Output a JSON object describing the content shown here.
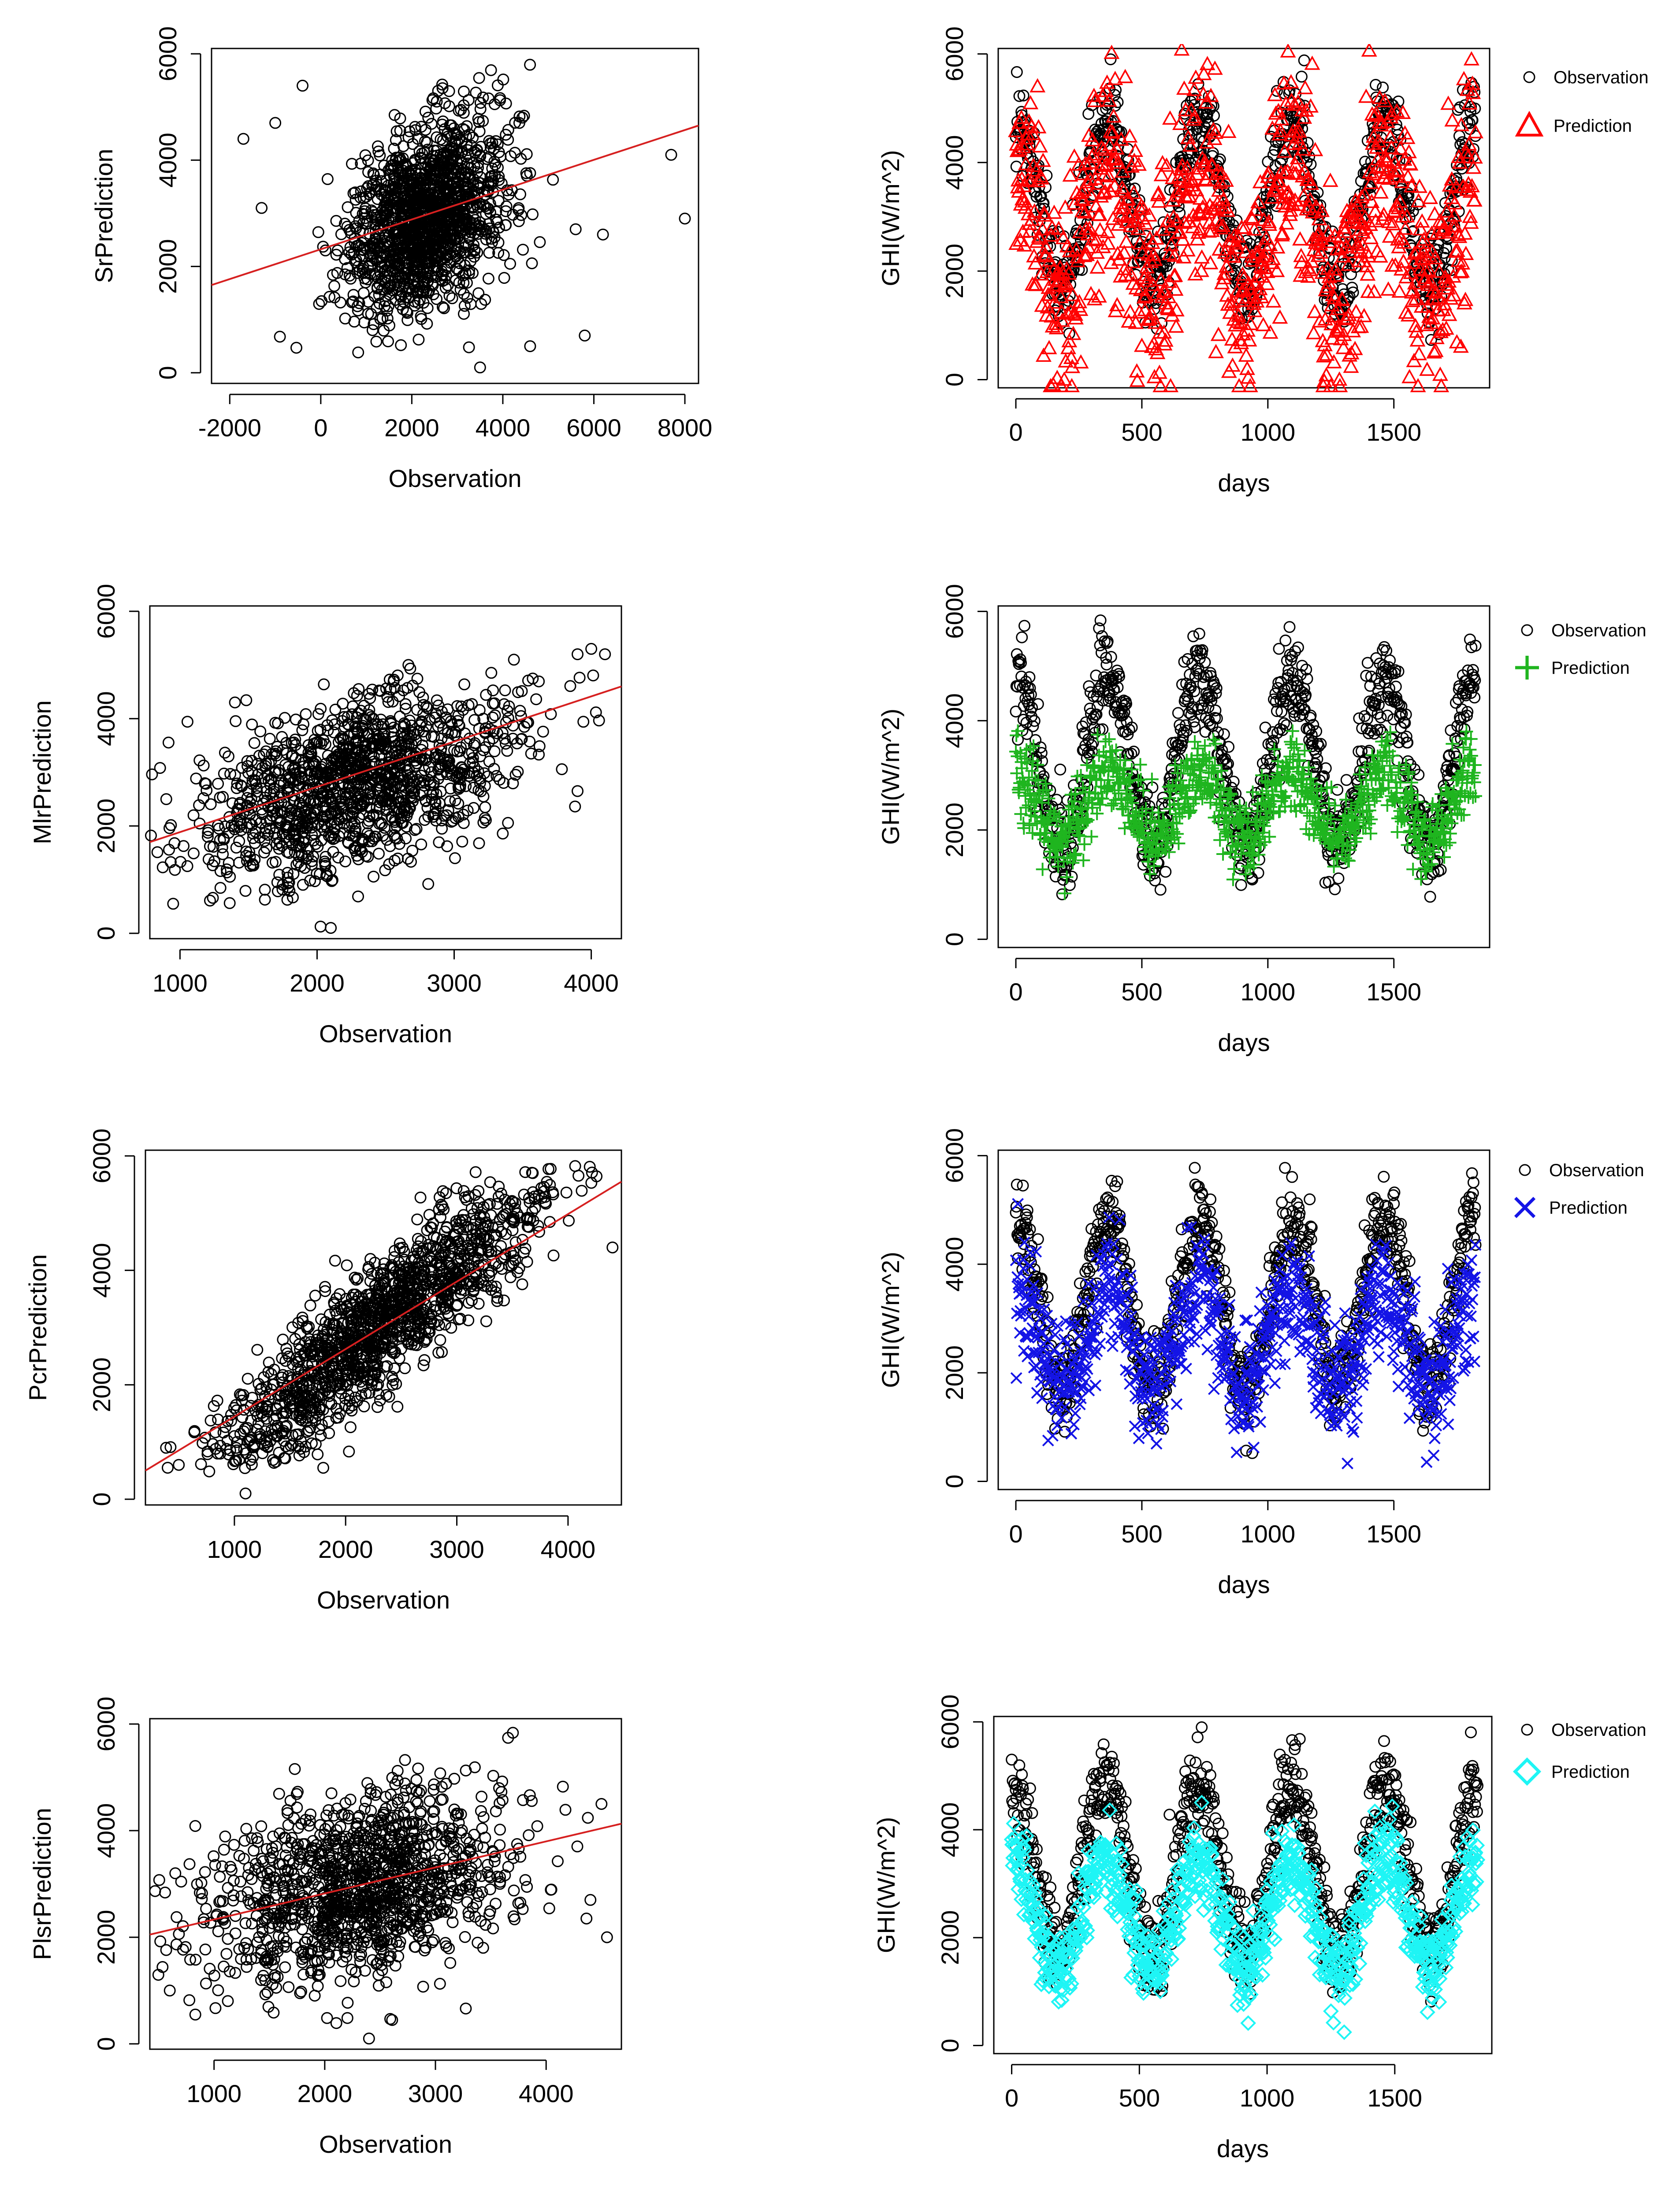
{
  "colors": {
    "observation": "#000000",
    "fit_line": "#d62020",
    "sr_pred": "#ff0000",
    "mlr_pred": "#1fb51f",
    "pcr_pred": "#1414e6",
    "plsr_pred": "#1ef5f5",
    "frame": "#000000"
  },
  "chart_data": [
    {
      "id": "sr-scatter",
      "type": "scatter",
      "xlabel": "Observation",
      "ylabel": "SrPrediction",
      "xlim": [
        -2400,
        8300
      ],
      "ylim": [
        -200,
        6100
      ],
      "xticks": [
        -2000,
        0,
        2000,
        4000,
        6000,
        8000
      ],
      "yticks": [
        0,
        2000,
        4000,
        6000
      ],
      "cloud": {
        "center": [
          2300,
          2900
        ],
        "spread": [
          850,
          900
        ],
        "n": 1400,
        "corr": 0.35,
        "clip_y": [
          200,
          5900
        ]
      },
      "outliers": [
        [
          -1700,
          4400
        ],
        [
          -1300,
          3100
        ],
        [
          -1000,
          4700
        ],
        [
          -400,
          5400
        ],
        [
          8000,
          2900
        ],
        [
          7700,
          4100
        ],
        [
          6200,
          2600
        ],
        [
          5800,
          700
        ],
        [
          5600,
          2700
        ],
        [
          3500,
          100
        ],
        [
          4600,
          500
        ]
      ],
      "fit_line": {
        "x": [
          -2400,
          8300
        ],
        "y": [
          1650,
          4650
        ]
      }
    },
    {
      "id": "sr-series",
      "type": "line-markers",
      "xlabel": "days",
      "ylabel": "GHI(W/m^2)",
      "xlim": [
        -70,
        1880
      ],
      "ylim": [
        -150,
        6100
      ],
      "xticks": [
        0,
        500,
        1000,
        1500
      ],
      "yticks": [
        0,
        2000,
        4000,
        6000
      ],
      "n": 1826,
      "period": 365.25,
      "observation": {
        "mean": 3250,
        "amp": 1550,
        "noise": 450
      },
      "prediction": {
        "mean": 2700,
        "amp": 1150,
        "noise": 1000,
        "marker": "triangle",
        "color": "#ff0000"
      },
      "legend": [
        "Observation",
        "Prediction"
      ]
    },
    {
      "id": "mlr-scatter",
      "type": "scatter",
      "xlabel": "Observation",
      "ylabel": "MlrPrediction",
      "xlim": [
        780,
        4220
      ],
      "ylim": [
        -100,
        6100
      ],
      "xticks": [
        1000,
        2000,
        3000,
        4000
      ],
      "yticks": [
        0,
        2000,
        4000,
        6000
      ],
      "cloud": {
        "center": [
          2300,
          2800
        ],
        "spread": [
          560,
          850
        ],
        "n": 1300,
        "corr": 0.45,
        "clip_y": [
          100,
          5900
        ]
      },
      "outliers": [
        [
          950,
          550
        ],
        [
          2100,
          100
        ],
        [
          3900,
          5200
        ],
        [
          4100,
          5200
        ],
        [
          4000,
          5300
        ],
        [
          3900,
          2650
        ],
        [
          900,
          2500
        ]
      ],
      "fit_line": {
        "x": [
          780,
          4220
        ],
        "y": [
          1700,
          4600
        ]
      }
    },
    {
      "id": "mlr-series",
      "type": "line-markers",
      "xlabel": "days",
      "ylabel": "GHI(W/m^2)",
      "xlim": [
        -70,
        1880
      ],
      "ylim": [
        -150,
        6100
      ],
      "xticks": [
        0,
        500,
        1000,
        1500
      ],
      "yticks": [
        0,
        2000,
        4000,
        6000
      ],
      "n": 1826,
      "period": 365.25,
      "observation": {
        "mean": 3250,
        "amp": 1550,
        "noise": 450
      },
      "prediction": {
        "mean": 2450,
        "amp": 600,
        "noise": 380,
        "marker": "plus",
        "color": "#1fb51f"
      },
      "legend": [
        "Observation",
        "Prediction"
      ]
    },
    {
      "id": "pcr-scatter",
      "type": "scatter",
      "xlabel": "Observation",
      "ylabel": "PcrPrediction",
      "xlim": [
        200,
        4480
      ],
      "ylim": [
        -100,
        6100
      ],
      "xticks": [
        1000,
        2000,
        3000,
        4000
      ],
      "yticks": [
        0,
        2000,
        4000,
        6000
      ],
      "cloud": {
        "center": [
          2300,
          3000
        ],
        "spread": [
          700,
          1200
        ],
        "n": 1400,
        "corr": 0.88,
        "clip_y": [
          400,
          5850
        ]
      },
      "outliers": [
        [
          1100,
          100
        ],
        [
          400,
          550
        ],
        [
          500,
          600
        ],
        [
          4400,
          4400
        ]
      ],
      "fit_line": {
        "x": [
          200,
          4480
        ],
        "y": [
          500,
          5550
        ]
      }
    },
    {
      "id": "pcr-series",
      "type": "line-markers",
      "xlabel": "days",
      "ylabel": "GHI(W/m^2)",
      "xlim": [
        -70,
        1880
      ],
      "ylim": [
        -150,
        6100
      ],
      "xticks": [
        0,
        500,
        1000,
        1500
      ],
      "yticks": [
        0,
        2000,
        4000,
        6000
      ],
      "n": 1826,
      "period": 365.25,
      "observation": {
        "mean": 3250,
        "amp": 1550,
        "noise": 450
      },
      "prediction": {
        "mean": 2600,
        "amp": 900,
        "noise": 550,
        "marker": "cross",
        "color": "#1414e6"
      },
      "legend": [
        "Observation",
        "Prediction"
      ]
    },
    {
      "id": "plsr-scatter",
      "type": "scatter",
      "xlabel": "Observation",
      "ylabel": "PlsrPrediction",
      "xlim": [
        420,
        4680
      ],
      "ylim": [
        -100,
        6100
      ],
      "xticks": [
        1000,
        2000,
        3000,
        4000
      ],
      "yticks": [
        0,
        2000,
        4000,
        6000
      ],
      "cloud": {
        "center": [
          2300,
          2900
        ],
        "spread": [
          650,
          900
        ],
        "n": 1300,
        "corr": 0.3,
        "clip_y": [
          300,
          5850
        ]
      },
      "outliers": [
        [
          600,
          1000
        ],
        [
          2400,
          100
        ],
        [
          4550,
          2000
        ],
        [
          4400,
          2700
        ],
        [
          4500,
          4500
        ],
        [
          650,
          3200
        ]
      ],
      "fit_line": {
        "x": [
          420,
          4680
        ],
        "y": [
          2050,
          4130
        ]
      }
    },
    {
      "id": "plsr-series",
      "type": "line-markers",
      "xlabel": "days",
      "ylabel": "GHI(W/m^2)",
      "xlim": [
        -70,
        1880
      ],
      "ylim": [
        -150,
        6100
      ],
      "xticks": [
        0,
        500,
        1000,
        1500
      ],
      "yticks": [
        0,
        2000,
        4000,
        6000
      ],
      "n": 1826,
      "period": 365.25,
      "observation": {
        "mean": 3250,
        "amp": 1550,
        "noise": 450
      },
      "prediction": {
        "mean": 2450,
        "amp": 1050,
        "noise": 380,
        "marker": "diamond",
        "color": "#1ef5f5"
      },
      "legend": [
        "Observation",
        "Prediction"
      ]
    }
  ]
}
